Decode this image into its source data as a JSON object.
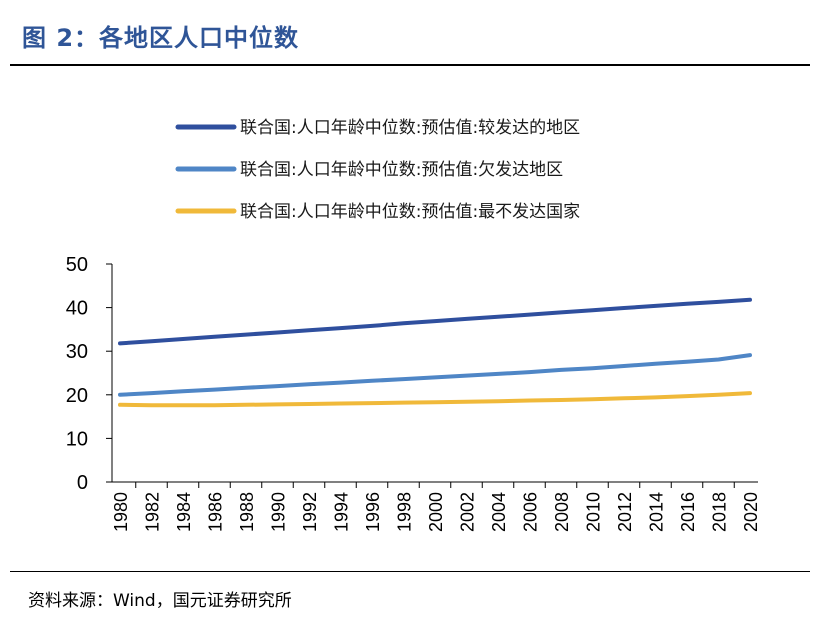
{
  "figure": {
    "title": "图 2：各地区人口中位数",
    "source": "资料来源：Wind，国元证券研究所"
  },
  "chart_data": {
    "type": "line",
    "title": "",
    "xlabel": "",
    "ylabel": "",
    "ylim": [
      0,
      50
    ],
    "yticks": [
      "0",
      "10",
      "20",
      "30",
      "40",
      "50"
    ],
    "categories": [
      "1980",
      "1982",
      "1984",
      "1986",
      "1988",
      "1990",
      "1992",
      "1994",
      "1996",
      "1998",
      "2000",
      "2002",
      "2004",
      "2006",
      "2008",
      "2010",
      "2012",
      "2014",
      "2016",
      "2018",
      "2020"
    ],
    "legend_position": "top",
    "grid": false,
    "series": [
      {
        "name": "联合国:人口年龄中位数:预估值:较发达的地区",
        "color": "#2f4f9e",
        "values": [
          31.8,
          32.3,
          32.8,
          33.3,
          33.8,
          34.3,
          34.8,
          35.3,
          35.8,
          36.4,
          36.9,
          37.4,
          37.9,
          38.4,
          38.9,
          39.4,
          39.9,
          40.4,
          40.9,
          41.3,
          41.8
        ]
      },
      {
        "name": "联合国:人口年龄中位数:预估值:欠发达地区",
        "color": "#4f86c6",
        "values": [
          20.0,
          20.4,
          20.8,
          21.2,
          21.6,
          22.0,
          22.4,
          22.8,
          23.2,
          23.6,
          24.0,
          24.4,
          24.8,
          25.2,
          25.7,
          26.1,
          26.6,
          27.1,
          27.6,
          28.1,
          29.1
        ]
      },
      {
        "name": "联合国:人口年龄中位数:预估值:最不发达国家",
        "color": "#f0b93a",
        "values": [
          17.7,
          17.6,
          17.6,
          17.6,
          17.7,
          17.8,
          17.9,
          18.0,
          18.1,
          18.2,
          18.3,
          18.4,
          18.5,
          18.7,
          18.8,
          19.0,
          19.2,
          19.4,
          19.7,
          20.0,
          20.4
        ]
      }
    ]
  }
}
